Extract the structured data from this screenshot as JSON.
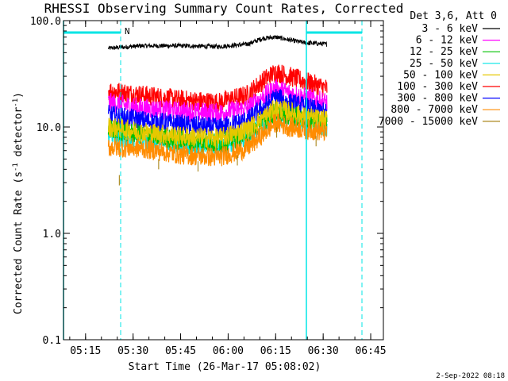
{
  "chart_data": {
    "type": "line",
    "title": "RHESSI Observing Summary Count Rates, Corrected",
    "xlabel": "Start Time (26-Mar-17 05:08:02)",
    "ylabel_main": "Corrected Count Rate (s",
    "ylabel_sup1": "-1",
    "ylabel_mid": " detector",
    "ylabel_sup2": "-1",
    "ylabel_end": ")",
    "y_scale": "log",
    "ylim": [
      0.1,
      100
    ],
    "y_ticks": [
      {
        "value": 0.1,
        "label": "0.1"
      },
      {
        "value": 1,
        "label": "1.0"
      },
      {
        "value": 10,
        "label": "10.0"
      },
      {
        "value": 100,
        "label": "100.0"
      }
    ],
    "xlim": [
      5.1339,
      6.8167
    ],
    "x_ticks": [
      {
        "value": 5.25,
        "label": "05:15"
      },
      {
        "value": 5.5,
        "label": "05:30"
      },
      {
        "value": 5.75,
        "label": "05:45"
      },
      {
        "value": 6.0,
        "label": "06:00"
      },
      {
        "value": 6.25,
        "label": "06:15"
      },
      {
        "value": 6.5,
        "label": "06:30"
      },
      {
        "value": 6.75,
        "label": "06:45"
      }
    ],
    "legend_title": "Det 3,6, Att 0",
    "legend_position": "top-right, outside plot",
    "series": [
      {
        "name": "3 - 6 keV",
        "color": "#000000",
        "x": [
          5.37,
          5.55,
          5.75,
          5.95,
          6.1,
          6.18,
          6.25,
          6.32,
          6.4,
          6.52
        ],
        "y": [
          55,
          58,
          58,
          57,
          60,
          68,
          70,
          66,
          62,
          60
        ]
      },
      {
        "name": "6 - 12 keV",
        "color": "#ff00ff",
        "x": [
          5.37,
          5.55,
          5.75,
          5.95,
          6.1,
          6.18,
          6.25,
          6.32,
          6.4,
          6.52
        ],
        "y": [
          17,
          15,
          14,
          13.5,
          15,
          19,
          23,
          21,
          19,
          17
        ]
      },
      {
        "name": "12 - 25 keV",
        "color": "#00c000",
        "x": [
          5.37,
          5.55,
          5.75,
          5.95,
          6.1,
          6.18,
          6.25,
          6.32,
          6.4,
          6.52
        ],
        "y": [
          9.5,
          8.5,
          7.5,
          7,
          8.5,
          11,
          14,
          13,
          12,
          11
        ]
      },
      {
        "name": "25 - 50 keV",
        "color": "#00e5e5",
        "x": [
          5.37,
          5.55,
          5.75,
          5.95,
          6.1,
          6.18,
          6.25,
          6.32,
          6.4,
          6.52
        ],
        "y": [
          8.5,
          7.5,
          6.8,
          6.5,
          8,
          10.5,
          13,
          12,
          11,
          10
        ]
      },
      {
        "name": "50 - 100 keV",
        "color": "#e6c800",
        "x": [
          5.37,
          5.55,
          5.75,
          5.95,
          6.1,
          6.18,
          6.25,
          6.32,
          6.4,
          6.52
        ],
        "y": [
          10,
          9,
          8.2,
          7.8,
          9.5,
          12,
          15,
          14,
          12.5,
          11.5
        ]
      },
      {
        "name": "100 - 300 keV",
        "color": "#ff0000",
        "x": [
          5.37,
          5.55,
          5.75,
          5.95,
          6.1,
          6.18,
          6.25,
          6.32,
          6.4,
          6.52
        ],
        "y": [
          22,
          20,
          18,
          17,
          20,
          27,
          33,
          30,
          27,
          23
        ]
      },
      {
        "name": "300 - 800 keV",
        "color": "#0000ff",
        "x": [
          5.37,
          5.55,
          5.75,
          5.95,
          6.1,
          6.18,
          6.25,
          6.32,
          6.4,
          6.52
        ],
        "y": [
          13,
          11.5,
          10.5,
          9.8,
          11.5,
          15,
          19,
          17,
          15.5,
          13.5
        ]
      },
      {
        "name": "800 - 7000 keV",
        "color": "#ff8c00",
        "x": [
          5.37,
          5.55,
          5.75,
          5.95,
          6.1,
          6.18,
          6.25,
          6.32,
          6.4,
          6.52
        ],
        "y": [
          6.5,
          6.3,
          5.5,
          5.2,
          6.3,
          8.5,
          11,
          10,
          9.5,
          9
        ]
      },
      {
        "name": "7000 - 15000 keV",
        "color": "#a07800",
        "x": [
          5.37,
          5.55,
          5.75,
          5.95,
          6.1,
          6.18,
          6.25,
          6.32,
          6.4,
          6.52
        ],
        "y": [
          3,
          5,
          5,
          4.5,
          6,
          8,
          10,
          9,
          8.5,
          8
        ]
      }
    ],
    "annotation_flag": "N",
    "footer_timestamp": "2-Sep-2022 08:18"
  }
}
